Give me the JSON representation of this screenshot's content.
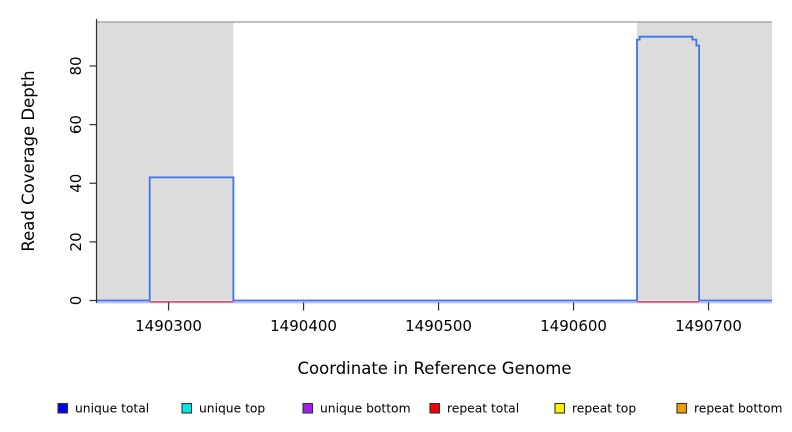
{
  "chart_data": {
    "type": "line",
    "title": "",
    "xlabel": "Coordinate in Reference Genome",
    "ylabel": "Read Coverage Depth",
    "xlim": [
      1490247,
      1490747
    ],
    "ylim": [
      0,
      95
    ],
    "x_ticks": [
      1490300,
      1490400,
      1490500,
      1490600,
      1490700
    ],
    "y_ticks": [
      0,
      20,
      40,
      60,
      80
    ],
    "grid": false,
    "legend_position": "bottom",
    "repeat_region_height": 95,
    "repeat_regions": [
      {
        "start": 1490247,
        "end": 1490348
      },
      {
        "start": 1490647,
        "end": 1490747
      }
    ],
    "series": [
      {
        "name": "unique total",
        "style": "step",
        "color": "#3d74ec",
        "vertices": [
          [
            1490247,
            0
          ],
          [
            1490286,
            0
          ],
          [
            1490286,
            42
          ],
          [
            1490348,
            42
          ],
          [
            1490348,
            0
          ],
          [
            1490647,
            0
          ],
          [
            1490647,
            89
          ],
          [
            1490649,
            89
          ],
          [
            1490649,
            90
          ],
          [
            1490688,
            90
          ],
          [
            1490688,
            89
          ],
          [
            1490691,
            89
          ],
          [
            1490691,
            87
          ],
          [
            1490693,
            87
          ],
          [
            1490693,
            0
          ],
          [
            1490747,
            0
          ]
        ]
      },
      {
        "name": "unique bottom",
        "style": "baseline",
        "color": "#c9b9f2",
        "y": 0,
        "segments": [
          [
            1490247,
            1490747
          ]
        ]
      },
      {
        "name": "repeat total",
        "style": "baseline",
        "color": "#ea4a5c",
        "y": 0,
        "segments": [
          [
            1490286,
            1490348
          ],
          [
            1490647,
            1490693
          ]
        ]
      }
    ],
    "legend": [
      {
        "label": "unique total",
        "color": "#0000f0"
      },
      {
        "label": "unique top",
        "color": "#00e6e6"
      },
      {
        "label": "unique bottom",
        "color": "#a020f0"
      },
      {
        "label": "repeat total",
        "color": "#f00000"
      },
      {
        "label": "repeat top",
        "color": "#fff200"
      },
      {
        "label": "repeat bottom",
        "color": "#f0a000"
      }
    ],
    "colors": {
      "repeat_region_fill": "#dcdcdc",
      "repeat_region_border": "#9a9a9a",
      "axis": "#2f2f2f"
    }
  }
}
